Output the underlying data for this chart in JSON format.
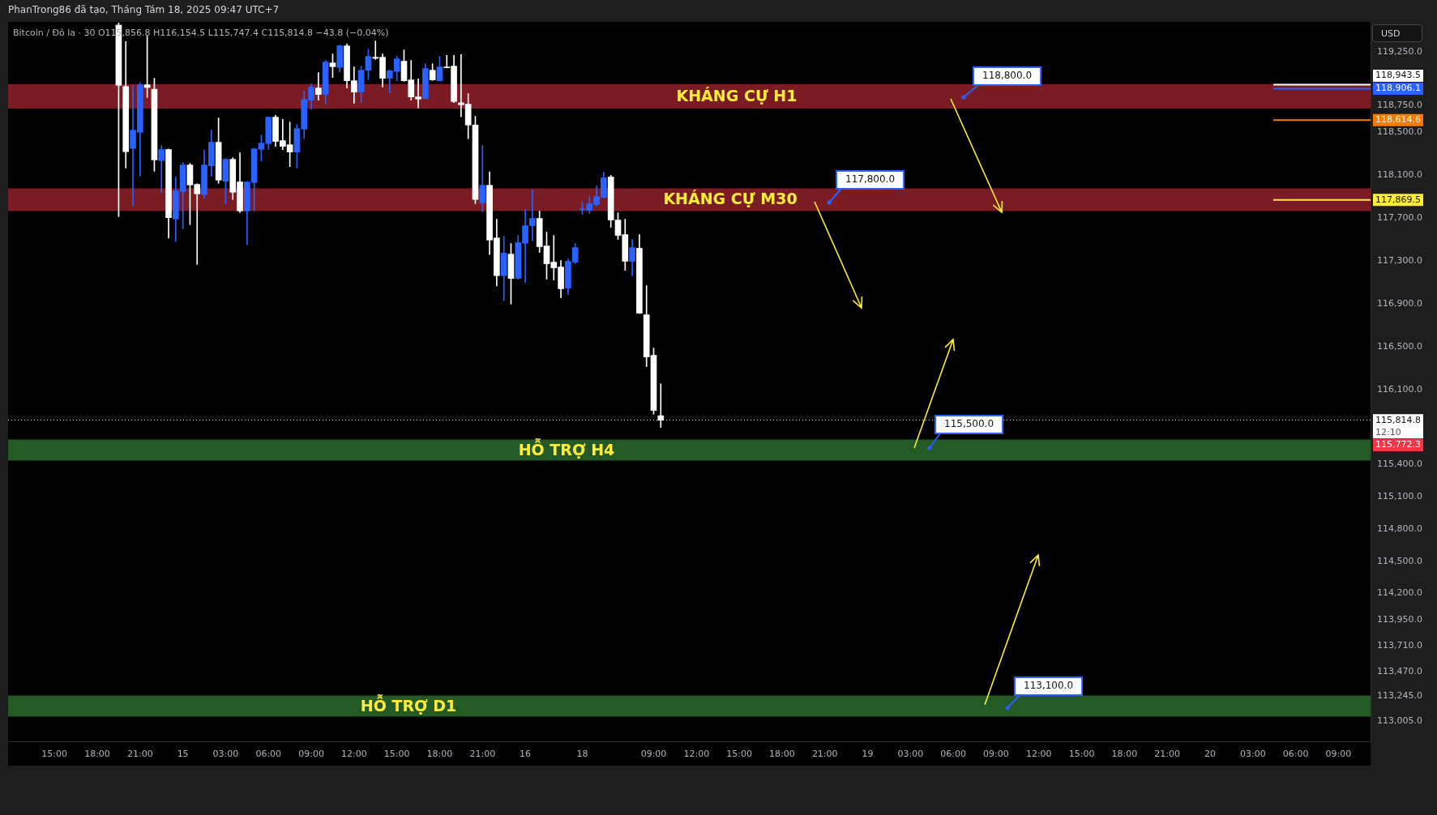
{
  "chart_data": {
    "type": "candlestick",
    "title": "PhanTrong86 đã tạo, Tháng Tám 18, 2025 09:47 UTC+7",
    "subtitle": "Bitcoin / Đô la · 30   O115,856.8  H116,154.5  L115,747.4  C115,814.8  −43.8 (−0.04%)",
    "ylabel": "USD",
    "categories": [
      null,
      null,
      null,
      null,
      null,
      null,
      "15:00",
      null,
      null,
      null,
      null,
      null,
      "18:00",
      null,
      null,
      null,
      null,
      null,
      "21:00",
      null,
      null,
      null,
      null,
      null,
      "15",
      null,
      null,
      null,
      null,
      null,
      "03:00",
      null,
      null,
      null,
      null,
      null,
      "06:00",
      null,
      null,
      null,
      null,
      null,
      "09:00",
      null,
      null,
      null,
      null,
      null,
      "12:00",
      null,
      null,
      null,
      null,
      null,
      "15:00",
      null,
      null,
      null,
      null,
      null,
      "18:00",
      null,
      null,
      null,
      null,
      null,
      "21:00",
      null,
      null,
      null,
      null,
      null,
      "16",
      null,
      null,
      null,
      null,
      null,
      null,
      null,
      "18",
      null,
      null,
      null,
      null,
      null,
      null,
      null,
      null,
      null,
      "09:00",
      null,
      null,
      null,
      null,
      null,
      "12:00",
      null,
      null,
      null,
      null,
      null,
      "15:00",
      null,
      null,
      null,
      null,
      null,
      "18:00",
      null,
      null,
      null,
      null,
      null,
      "21:00",
      null,
      null,
      null,
      null,
      null,
      "19",
      null,
      null,
      null,
      null,
      null,
      "03:00",
      null,
      null,
      null,
      null,
      null,
      "06:00",
      null,
      null,
      null,
      null,
      null,
      "09:00",
      null,
      null,
      null,
      null,
      null,
      "12:00",
      null,
      null,
      null,
      null,
      null,
      "15:00",
      null,
      null,
      null,
      null,
      null,
      "18:00",
      null,
      null,
      null,
      null,
      null,
      "21:00",
      null,
      null,
      null,
      null,
      null,
      "20",
      null,
      null,
      null,
      null,
      null,
      "03:00",
      null,
      null,
      null,
      null,
      null,
      "06:00",
      null,
      null,
      null,
      null,
      null,
      "09:00",
      null,
      null,
      null,
      null
    ],
    "ohlc": [
      null,
      null,
      null,
      null,
      null,
      null,
      null,
      null,
      null,
      null,
      null,
      null,
      null,
      null,
      null,
      [
        119500,
        119520,
        117714,
        118938
      ],
      [
        118928,
        119346,
        118168,
        118319
      ],
      [
        118349,
        118936,
        117815,
        118520
      ],
      [
        118500,
        118964,
        118092,
        118943
      ],
      [
        118943,
        119397,
        118825,
        118918
      ],
      [
        118903,
        119004,
        118137,
        118243
      ],
      [
        118236,
        118377,
        117941,
        118339
      ],
      [
        118339,
        118345,
        117513,
        117704
      ],
      [
        117692,
        118082,
        117482,
        117954
      ],
      [
        117948,
        118218,
        117601,
        118195
      ],
      [
        118195,
        118210,
        117639,
        118009
      ],
      [
        118014,
        118020,
        117268,
        117926
      ],
      [
        117918,
        118331,
        117885,
        118195
      ],
      [
        118188,
        118520,
        118092,
        118407
      ],
      [
        118407,
        118634,
        118024,
        118054
      ],
      [
        118044,
        118255,
        117835,
        118248
      ],
      [
        118248,
        118263,
        117873,
        117941
      ],
      [
        118037,
        118309,
        117752,
        117767
      ],
      [
        117767,
        118040,
        117452,
        118037
      ],
      [
        118032,
        118350,
        117767,
        118346
      ],
      [
        118341,
        118475,
        118233,
        118399
      ],
      [
        118394,
        118645,
        118339,
        118641
      ],
      [
        118641,
        118659,
        118369,
        118415
      ],
      [
        118422,
        118621,
        118339,
        118369
      ],
      [
        118384,
        118596,
        118180,
        118316
      ],
      [
        118316,
        118573,
        118168,
        118535
      ],
      [
        118530,
        118885,
        118440,
        118807
      ],
      [
        118800,
        118951,
        118717,
        118923
      ],
      [
        118913,
        119057,
        118800,
        118853
      ],
      [
        118853,
        119170,
        118762,
        119155
      ],
      [
        119147,
        119231,
        119011,
        119112
      ],
      [
        119105,
        119314,
        119064,
        119306
      ],
      [
        119306,
        119326,
        118913,
        118981
      ],
      [
        118981,
        119110,
        118772,
        118875
      ],
      [
        118875,
        119117,
        118780,
        119079
      ],
      [
        119079,
        119276,
        118991,
        119208
      ],
      [
        119200,
        119352,
        119180,
        119190
      ],
      [
        119200,
        119231,
        118923,
        119004
      ],
      [
        119004,
        119079,
        118868,
        119074
      ],
      [
        119067,
        119210,
        118981,
        119185
      ],
      [
        119163,
        119268,
        118975,
        118981
      ],
      [
        118989,
        119170,
        118800,
        118830
      ],
      [
        118830,
        118999,
        118727,
        118810
      ],
      [
        118815,
        119140,
        118812,
        119095
      ],
      [
        119079,
        119140,
        118985,
        118989
      ],
      [
        118981,
        119208,
        118978,
        119110
      ],
      [
        119107,
        119218,
        119100,
        119102
      ],
      [
        119117,
        119218,
        118777,
        118787
      ],
      [
        118775,
        119226,
        118644,
        118757
      ],
      [
        118762,
        118860,
        118440,
        118568
      ],
      [
        118568,
        118649,
        117835,
        117873
      ],
      [
        117843,
        118377,
        117760,
        118006
      ],
      [
        118006,
        118132,
        117361,
        117495
      ],
      [
        117515,
        117689,
        117067,
        117163
      ],
      [
        117163,
        117530,
        116928,
        117372
      ],
      [
        117364,
        117462,
        116898,
        117137
      ],
      [
        117138,
        117538,
        117130,
        117471
      ],
      [
        117465,
        117780,
        117100,
        117629
      ],
      [
        117629,
        117962,
        117488,
        117697
      ],
      [
        117697,
        117765,
        117380,
        117433
      ],
      [
        117440,
        117569,
        117130,
        117274
      ],
      [
        117289,
        117538,
        117123,
        117236
      ],
      [
        117244,
        117304,
        116957,
        117040
      ],
      [
        117047,
        117319,
        116987,
        117297
      ],
      [
        117289,
        117463,
        117274,
        117425
      ],
      [
        117778,
        117848,
        117735,
        117785
      ],
      [
        117773,
        117901,
        117743,
        117833
      ],
      [
        117826,
        118000,
        117811,
        117901
      ],
      [
        117894,
        118128,
        117886,
        118075
      ],
      [
        118083,
        118098,
        117614,
        117682
      ],
      [
        117682,
        117750,
        117501,
        117538
      ],
      [
        117546,
        117690,
        117213,
        117297
      ],
      [
        117297,
        117501,
        117161,
        117425
      ],
      [
        117418,
        117546,
        116810,
        116813
      ],
      [
        116798,
        117070,
        116314,
        116405
      ],
      [
        116420,
        116488,
        115871,
        115906
      ],
      [
        115856.8,
        116154.5,
        115747.4,
        115814.8
      ],
      null,
      null,
      null,
      null,
      null,
      null,
      null,
      null,
      null,
      null,
      null,
      null,
      null,
      null,
      null,
      null,
      null,
      null,
      null,
      null,
      null,
      null,
      null,
      null,
      null,
      null,
      null,
      null,
      null,
      null,
      null,
      null,
      null,
      null,
      null,
      null,
      null,
      null,
      null,
      null,
      null,
      null,
      null,
      null,
      null,
      null,
      null,
      null,
      null,
      null,
      null,
      null,
      null,
      null,
      null,
      null,
      null,
      null,
      null,
      null,
      null,
      null,
      null,
      null,
      null,
      null,
      null,
      null,
      null,
      null,
      null,
      null,
      null,
      null,
      null,
      null,
      null,
      null,
      null,
      null,
      null,
      null,
      null,
      null,
      null,
      null,
      null,
      null,
      null,
      null,
      null,
      null,
      null,
      null,
      null,
      null,
      null,
      null,
      null
    ],
    "colors": [
      null,
      null,
      null,
      null,
      null,
      null,
      null,
      null,
      null,
      null,
      null,
      null,
      null,
      null,
      null,
      "#ffffff",
      "#ffffff",
      "#2962ff",
      "#2962ff",
      "#ffffff",
      "#ffffff",
      "#2962ff",
      "#ffffff",
      "#2962ff",
      "#2962ff",
      "#ffffff",
      "#ffffff",
      "#2962ff",
      "#2962ff",
      "#ffffff",
      "#2962ff",
      "#ffffff",
      "#ffffff",
      "#2962ff",
      "#2962ff",
      "#2962ff",
      "#2962ff",
      "#ffffff",
      "#ffffff",
      "#ffffff",
      "#2962ff",
      "#2962ff",
      "#2962ff",
      "#ffffff",
      "#2962ff",
      "#ffffff",
      "#2962ff",
      "#ffffff",
      "#ffffff",
      "#2962ff",
      "#2962ff",
      "#ffffff",
      "#ffffff",
      "#2962ff",
      "#2962ff",
      "#ffffff",
      "#ffffff",
      "#ffffff",
      "#2962ff",
      "#ffffff",
      "#2962ff",
      "#ffffff",
      "#ffffff",
      "#ffffff",
      "#ffffff",
      "#ffffff",
      "#2962ff",
      "#ffffff",
      "#ffffff",
      "#2962ff",
      "#ffffff",
      "#2962ff",
      "#2962ff",
      "#2962ff",
      "#ffffff",
      "#ffffff",
      "#ffffff",
      "#ffffff",
      "#2962ff",
      "#2962ff",
      "#2962ff",
      "#2962ff",
      "#2962ff",
      "#2962ff",
      "#ffffff",
      "#ffffff",
      "#ffffff",
      "#2962ff",
      "#ffffff",
      "#ffffff",
      "#ffffff",
      "#ffffff",
      null,
      null,
      null,
      null,
      null,
      null,
      null,
      null,
      null,
      null,
      null,
      null,
      null,
      null,
      null,
      null,
      null,
      null,
      null,
      null,
      null,
      null,
      null,
      null,
      null,
      null,
      null,
      null,
      null,
      null,
      null,
      null,
      null,
      null,
      null,
      null,
      null,
      null,
      null,
      null,
      null,
      null,
      null,
      null,
      null,
      null,
      null,
      null,
      null,
      null,
      null,
      null,
      null,
      null,
      null,
      null,
      null,
      null,
      null,
      null,
      null,
      null,
      null,
      null,
      null,
      null,
      null,
      null,
      null,
      null,
      null,
      null,
      null,
      null,
      null,
      null,
      null,
      null,
      null,
      null,
      null,
      null,
      null,
      null,
      null,
      null,
      null,
      null,
      null,
      null,
      null,
      null,
      null,
      null,
      null,
      null,
      null,
      null,
      null
    ],
    "ylim": [
      112820,
      119530
    ],
    "yticks": [
      {
        "value": 119250,
        "label": "119,250.0"
      },
      {
        "value": 118750,
        "label": "118,750.0"
      },
      {
        "value": 118500,
        "label": "118,500.0"
      },
      {
        "value": 118100,
        "label": "118,100.0"
      },
      {
        "value": 117700,
        "label": "117,700.0"
      },
      {
        "value": 117300,
        "label": "117,300.0"
      },
      {
        "value": 116900,
        "label": "116,900.0"
      },
      {
        "value": 116500,
        "label": "116,500.0"
      },
      {
        "value": 116100,
        "label": "116,100.0"
      },
      {
        "value": 115400,
        "label": "115,400.0"
      },
      {
        "value": 115100,
        "label": "115,100.0"
      },
      {
        "value": 114800,
        "label": "114,800.0"
      },
      {
        "value": 114500,
        "label": "114,500.0"
      },
      {
        "value": 114200,
        "label": "114,200.0"
      },
      {
        "value": 113950,
        "label": "113,950.0"
      },
      {
        "value": 113710,
        "label": "113,710.0"
      },
      {
        "value": 113470,
        "label": "113,470.0"
      },
      {
        "value": 113245,
        "label": "113,245.0"
      },
      {
        "value": 113005,
        "label": "113,005.0"
      }
    ],
    "bands": [
      {
        "axis": "y",
        "from": 118721,
        "to": 118951,
        "label": "KHÁNG CỰ H1",
        "color": "#7b1c24"
      },
      {
        "axis": "y",
        "from": 117765,
        "to": 117977,
        "label": "KHÁNG CỰ M30",
        "color": "#7b1c24"
      },
      {
        "axis": "y",
        "from": 115438,
        "to": 115634,
        "label": "HỖ TRỢ H4",
        "color": "#235a26"
      },
      {
        "axis": "y",
        "from": 113050,
        "to": 113246,
        "label": "HỖ TRỢ D1",
        "color": "#235a26"
      }
    ],
    "ref_lines": [
      {
        "axis": "y",
        "value": 115814.8,
        "label": "115,814.8\n12:10",
        "color": "#ffffff",
        "line_style": "dotted"
      },
      {
        "axis": "y",
        "value": 118943.5,
        "label": "118,943.5",
        "color": "#ffffff"
      },
      {
        "axis": "y",
        "value": 118906.1,
        "label": "118,906.1",
        "color": "#2962ff"
      },
      {
        "axis": "y",
        "value": 118614.6,
        "label": "118,614.6",
        "color": "#f57c00"
      },
      {
        "axis": "y",
        "value": 117869.5,
        "label": "117,869.5",
        "color": "#ffeb3b"
      }
    ],
    "annotations": [
      "118,800.0",
      "117,800.0",
      "115,500.0",
      "113,100.0",
      "115,772.3"
    ]
  }
}
